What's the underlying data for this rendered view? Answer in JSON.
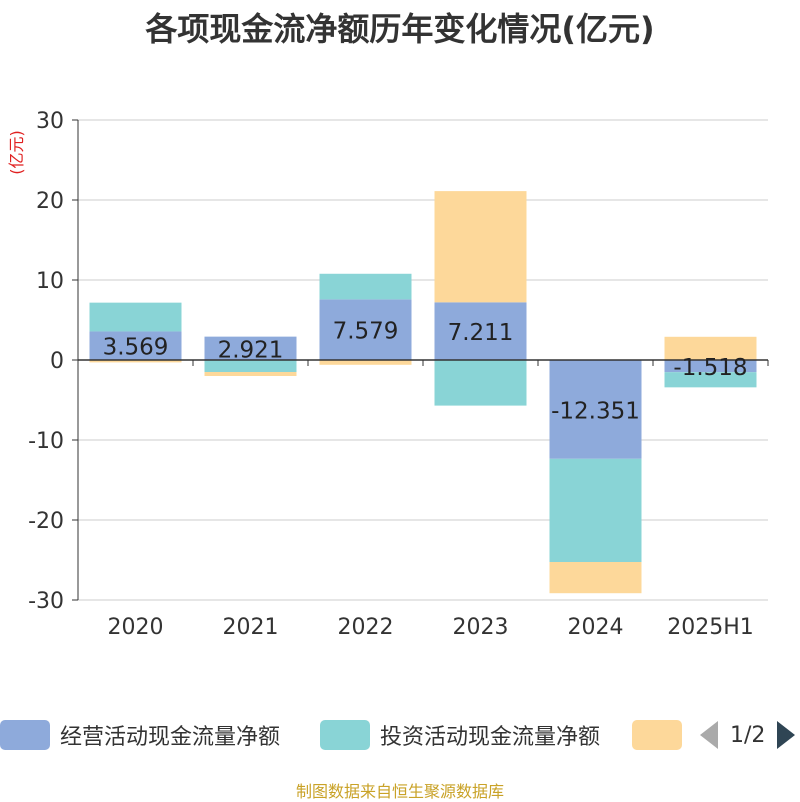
{
  "chart_data": {
    "type": "bar",
    "stacked": true,
    "title": "各项现金流净额历年变化情况(亿元)",
    "ylabel": "(亿元)",
    "categories": [
      "2020",
      "2021",
      "2022",
      "2023",
      "2024",
      "2025H1"
    ],
    "ylim": [
      -30,
      30
    ],
    "yticks": [
      30,
      20,
      10,
      0,
      -10,
      -20,
      -30
    ],
    "grid": true,
    "legend_position": "bottom",
    "series": [
      {
        "name": "经营活动现金流量净额",
        "color": "#8eaadb",
        "values": [
          3.569,
          2.921,
          7.579,
          7.211,
          -12.351,
          -1.518
        ],
        "labels": [
          "3.569",
          "2.921",
          "7.579",
          "7.211",
          "-12.351",
          "-1.518"
        ]
      },
      {
        "name": "投资活动现金流量净额",
        "color": "#89d4d6",
        "values": [
          3.6,
          -1.5,
          3.2,
          -5.7,
          -12.9,
          -1.9
        ]
      },
      {
        "name": "",
        "color": "#fdd89a",
        "values": [
          -0.3,
          -0.5,
          -0.6,
          13.9,
          -3.9,
          2.9
        ]
      }
    ],
    "pager": "1/2",
    "source": "制图数据来自恒生聚源数据库"
  }
}
